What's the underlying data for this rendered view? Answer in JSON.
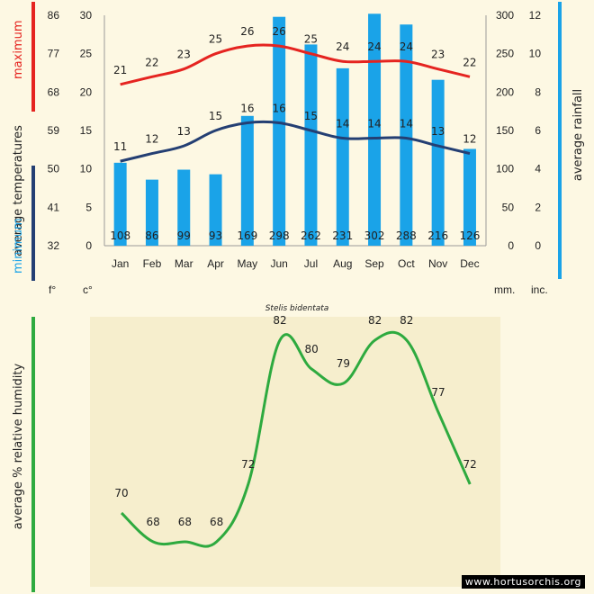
{
  "species": "Stelis bidentata",
  "watermark": "www.hortusorchis.org",
  "labels": {
    "maximum": "maximum",
    "minimum": "minimum",
    "average_temperatures": "average  temperatures",
    "average_rainfall": "average  rainfall",
    "average_humidity": "average %  relative humidity",
    "unit_f": "f°",
    "unit_c": "c°",
    "unit_mm": "mm.",
    "unit_inc": "inc."
  },
  "colors": {
    "max_line": "#e52420",
    "min_line": "#243f73",
    "rain_bar": "#1aa3e8",
    "humidity_line": "#2eaa3f",
    "paper": "#fdf8e3",
    "panel": "#f6eecd"
  },
  "chart_data": [
    {
      "type": "bar",
      "categories": [
        "Jan",
        "Feb",
        "Mar",
        "Apr",
        "May",
        "Jun",
        "Jul",
        "Aug",
        "Sep",
        "Oct",
        "Nov",
        "Dec"
      ],
      "series": [
        {
          "values": [
            21,
            22,
            23,
            25,
            26,
            26,
            25,
            24,
            24,
            24,
            23,
            22
          ]
        },
        {
          "values": [
            11,
            12,
            13,
            15,
            16,
            16,
            15,
            14,
            14,
            14,
            13,
            12
          ]
        },
        {
          "values": [
            108,
            86,
            99,
            93,
            169,
            298,
            262,
            231,
            302,
            288,
            216,
            126
          ]
        }
      ],
      "y_celsius": {
        "ticks": [
          0,
          5,
          10,
          15,
          20,
          25,
          30
        ],
        "ylim": [
          0,
          30
        ]
      },
      "y_fahrenheit": {
        "ticks": [
          32,
          41,
          50,
          59,
          68,
          77,
          86
        ]
      },
      "y_mm": {
        "ticks": [
          0,
          50,
          100,
          150,
          200,
          250,
          300
        ],
        "ylim": [
          0,
          300
        ]
      },
      "y_inches": {
        "ticks": [
          0,
          2,
          4,
          6,
          8,
          10,
          12
        ]
      },
      "grid": false
    },
    {
      "type": "line",
      "categories": [
        "Jan",
        "Feb",
        "Mar",
        "Apr",
        "May",
        "Jun",
        "Jul",
        "Aug",
        "Sep",
        "Oct",
        "Nov",
        "Dec"
      ],
      "series": [
        {
          "values": [
            70,
            68,
            68,
            68,
            72,
            82,
            80,
            79,
            82,
            82,
            77,
            72
          ]
        }
      ],
      "grid": false
    }
  ]
}
